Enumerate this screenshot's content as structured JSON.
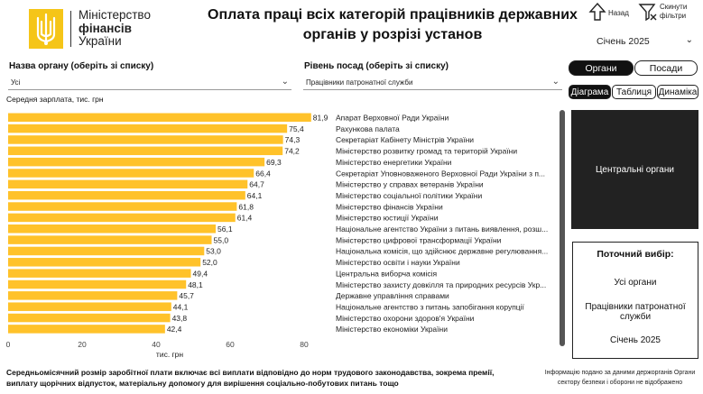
{
  "logo": {
    "line1": "Міністерство",
    "line2": "фінансів",
    "line3": "України"
  },
  "title": "Оплата праці всіх категорій працівників державних органів у розрізі установ",
  "nav": {
    "back_label": "Назад",
    "reset_label": "Скинути фільтри"
  },
  "month_select": {
    "value": "Січень 2025"
  },
  "filters": {
    "org_label": "Назва органу (оберіть зі списку)",
    "org_value": "Усі",
    "level_label": "Рівень посад (оберіть зі списку)",
    "level_value": "Працівники патронатної служби"
  },
  "toggle": {
    "organs": "Органи",
    "posts": "Посади"
  },
  "tabs": {
    "diagram": "Діаграма",
    "table": "Таблиця",
    "dynamics": "Динаміка"
  },
  "chart_subtitle": "Середня зарплата, тис. грн",
  "chart_data": {
    "type": "bar",
    "orientation": "horizontal",
    "xlabel": "тис. грн",
    "xlim": [
      0,
      82
    ],
    "xticks": [
      0,
      20,
      40,
      60,
      80
    ],
    "color": "#FFC22A",
    "categories": [
      "Апарат Верховної Ради України",
      "Рахункова палата",
      "Секретаріат Кабінету Міністрів України",
      "Міністерство розвитку громад та територій України",
      "Міністерство енергетики України",
      "Секретаріат Уповноваженого Верховної Ради України з п...",
      "Міністерство у справах ветеранів України",
      "Міністерство соціальної політики України",
      "Міністерство фінансів України",
      "Міністерство юстиції України",
      "Національне агентство України з питань виявлення, розш...",
      "Міністерство цифрової трансформації України",
      "Національна комісія, що здійснює державне регулювання...",
      "Міністерство освіти і науки України",
      "Центральна виборча комісія",
      "Міністерство захисту довкілля та природних ресурсів Укр...",
      "Державне управління справами",
      "Національне агентство з питань запобігання корупції",
      "Міністерство охорони здоров'я України",
      "Міністерство економіки України"
    ],
    "values": [
      81.9,
      75.4,
      74.3,
      74.2,
      69.3,
      66.4,
      64.7,
      64.1,
      61.8,
      61.4,
      56.1,
      55.0,
      53.0,
      52.0,
      49.4,
      48.1,
      45.7,
      44.1,
      43.8,
      42.4
    ],
    "value_labels": [
      "81,9",
      "75,4",
      "74,3",
      "74,2",
      "69,3",
      "66,4",
      "64,7",
      "64,1",
      "61,8",
      "61,4",
      "56,1",
      "55,0",
      "53,0",
      "52,0",
      "49,4",
      "48,1",
      "45,7",
      "44,1",
      "43,8",
      "42,4"
    ]
  },
  "right_panel": {
    "label": "Центральні органи"
  },
  "selection": {
    "header": "Поточний вибір:",
    "org": "Усі органи",
    "level": "Працівники патронатної служби",
    "month": "Січень 2025"
  },
  "footer": {
    "note": "Середньомісячний розмір заробітної плати включає всі виплати відповідно до норм трудового законодавства, зокрема премії, виплату щорічних відпусток, матеріальну допомогу для вирішення соціально-побутових питань тощо",
    "source": "Інформацію подано за даними держорганів Органи сектору безпеки і оборони не відображено"
  }
}
